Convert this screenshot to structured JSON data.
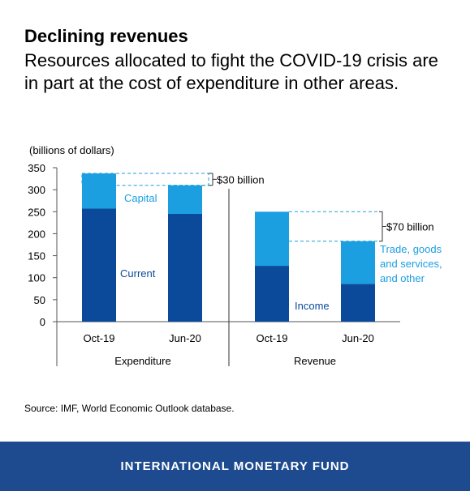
{
  "header": {
    "title": "Declining revenues",
    "subtitle": "Resources allocated to fight the COVID-19 crisis are in part at the cost of expenditure in other areas."
  },
  "chart_data": {
    "type": "bar",
    "stacked": true,
    "unit_label": "(billions of dollars)",
    "ylim": [
      0,
      350
    ],
    "yticks": [
      0,
      50,
      100,
      150,
      200,
      250,
      300,
      350
    ],
    "groups": [
      {
        "name": "Expenditure",
        "categories": [
          "Oct-19",
          "Jun-20"
        ],
        "series": [
          {
            "name": "Current",
            "values": [
              257,
              245
            ],
            "color": "#0b4a9b"
          },
          {
            "name": "Capital",
            "values": [
              80,
              65
            ],
            "color": "#1b9fe0"
          }
        ],
        "annotation": "$30 billion"
      },
      {
        "name": "Revenue",
        "categories": [
          "Oct-19",
          "Jun-20"
        ],
        "series": [
          {
            "name": "Income",
            "values": [
              127,
              86
            ],
            "color": "#0b4a9b"
          },
          {
            "name": "Trade, goods and services, and other",
            "values": [
              123,
              97
            ],
            "color": "#1b9fe0"
          }
        ],
        "annotation": "$70 billion"
      }
    ],
    "series_labels": {
      "capital": "Capital",
      "current": "Current",
      "income": "Income",
      "trade": [
        "Trade, goods",
        "and services,",
        "and other"
      ]
    },
    "colors": {
      "dark": "#0b4a9b",
      "light": "#1b9fe0",
      "light_text": "#1b9fe0",
      "dark_text": "#0b4a9b"
    }
  },
  "source": "Source: IMF, World Economic Outlook database.",
  "footer": {
    "brand": "INTERNATIONAL MONETARY FUND",
    "color": "#1e4b8f"
  }
}
